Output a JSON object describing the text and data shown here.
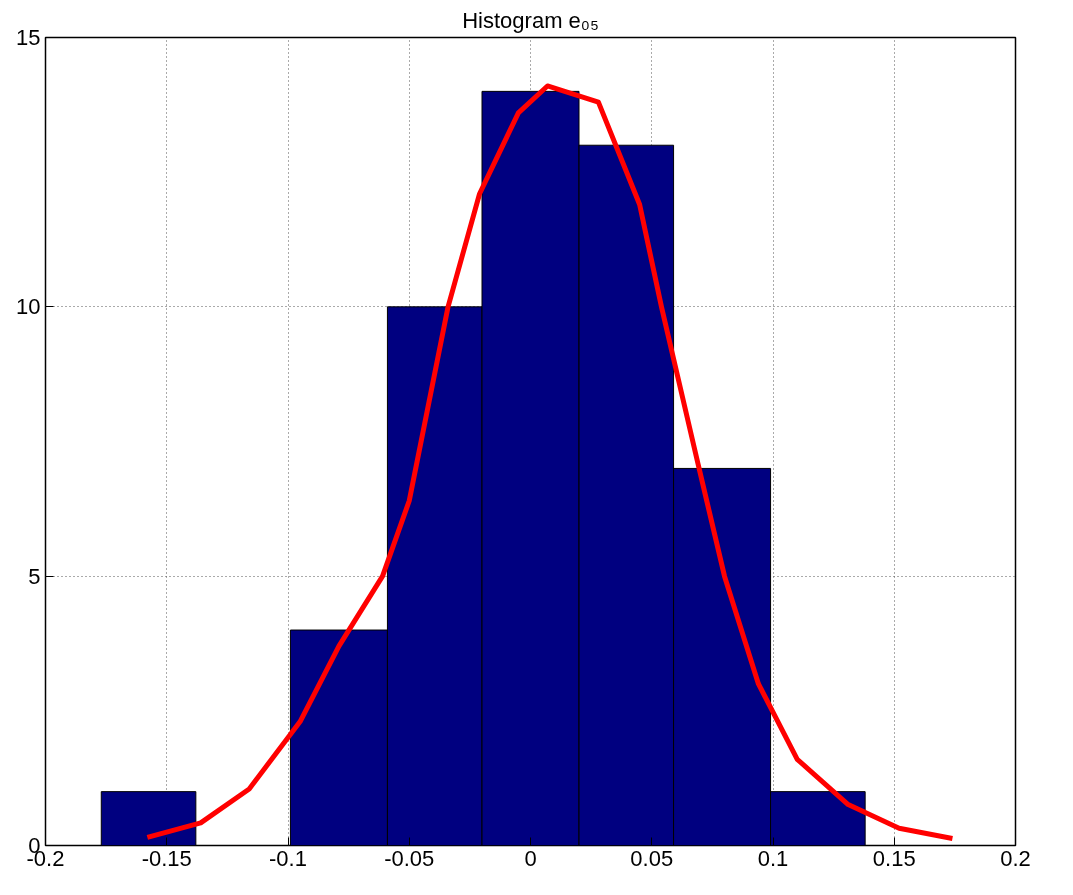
{
  "chart_data": {
    "type": "histogram",
    "title": "Histogram e₀₅",
    "bins": [
      -0.177,
      -0.138,
      -0.099,
      -0.059,
      -0.02,
      0.02,
      0.059,
      0.099,
      0.138
    ],
    "values": [
      1,
      0,
      4,
      10,
      14,
      13,
      7,
      1
    ],
    "color": "#000080",
    "series": [
      {
        "type": "line",
        "color": "#ff0000",
        "x": [
          -0.158,
          -0.136,
          -0.116,
          -0.095,
          -0.079,
          -0.061,
          -0.05,
          -0.034,
          -0.021,
          -0.005,
          0.007,
          0.028,
          0.045,
          0.054,
          0.069,
          0.08,
          0.094,
          0.11,
          0.131,
          0.152,
          0.174
        ],
        "values": [
          0.15,
          0.42,
          1.05,
          2.3,
          3.7,
          5.0,
          6.4,
          10,
          12.1,
          13.6,
          14.1,
          13.8,
          11.9,
          10,
          7.1,
          5.0,
          3.0,
          1.6,
          0.76,
          0.32,
          0.13
        ]
      }
    ],
    "xlim": [
      -0.2,
      0.2
    ],
    "xticks": [
      -0.2,
      -0.15,
      -0.1,
      -0.05,
      0,
      0.05,
      0.1,
      0.15,
      0.2
    ],
    "ylim": [
      0,
      15
    ],
    "yticks": [
      0,
      5,
      10,
      15
    ],
    "grid": true
  }
}
